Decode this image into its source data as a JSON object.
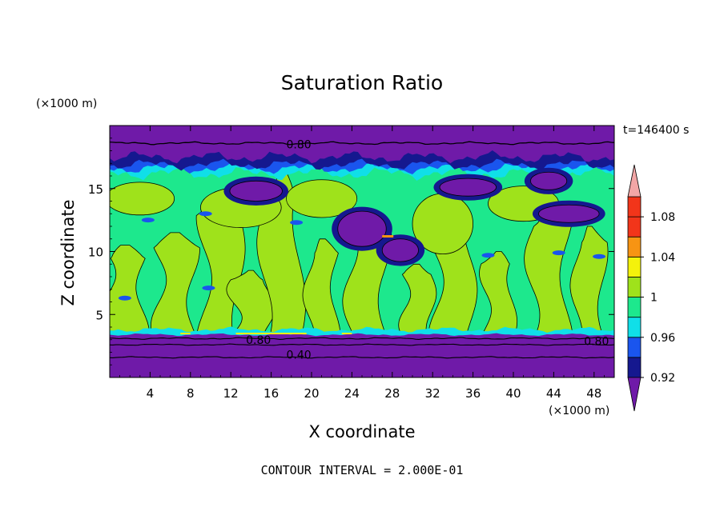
{
  "colors": {
    "purple": "#6f1aa8",
    "navy": "#15188f",
    "blue": "#1a55ee",
    "cyan": "#10dfe8",
    "teal": "#1de88d",
    "yellowgreen": "#9fe21b",
    "yellow": "#f4f20b",
    "orange": "#f79413",
    "red": "#f2351a",
    "pink": "#f2a6a6"
  },
  "chart_data": {
    "type": "heatmap",
    "title": "Saturation Ratio",
    "xlabel": "X coordinate",
    "ylabel": "Z coordinate",
    "x_unit": "(×1000 m)",
    "y_unit": "(×1000 m)",
    "time_label": "t=146400 s",
    "footer": "CONTOUR INTERVAL = 2.000E-01",
    "xlim": [
      0,
      50
    ],
    "ylim": [
      0,
      20
    ],
    "x_ticks": [
      4,
      8,
      12,
      16,
      20,
      24,
      28,
      32,
      36,
      40,
      44,
      48
    ],
    "y_ticks": [
      5,
      10,
      15
    ],
    "colorbar": {
      "levels": [
        0.92,
        0.94,
        0.96,
        0.98,
        1.0,
        1.02,
        1.04,
        1.06,
        1.08,
        1.1
      ],
      "tick_labels": [
        "0.92",
        "0.96",
        "1",
        "1.04",
        "1.08"
      ],
      "tick_values": [
        0.92,
        0.96,
        1.0,
        1.04,
        1.08
      ],
      "extend": "both"
    },
    "contour_labels": [
      {
        "text": "0.80",
        "x": 17.5,
        "z": 18.5
      },
      {
        "text": "0.80",
        "x": 13.5,
        "z": 3.0
      },
      {
        "text": "0.40",
        "x": 17.5,
        "z": 1.8
      },
      {
        "text": "0.80",
        "x": 47.0,
        "z": 2.9
      }
    ]
  }
}
